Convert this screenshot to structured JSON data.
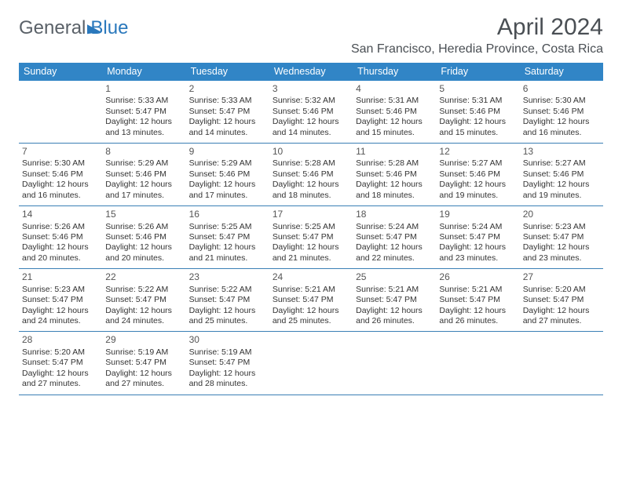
{
  "brand": {
    "part1": "General",
    "part2": "Blue"
  },
  "title": "April 2024",
  "location": "San Francisco, Heredia Province, Costa Rica",
  "colors": {
    "header_bg": "#3185c6",
    "header_text": "#ffffff",
    "rule": "#3a7fb5",
    "text": "#333333",
    "title_text": "#4a4f54",
    "brand_gray": "#5a6168",
    "brand_blue": "#2a78bc",
    "page_bg": "#ffffff"
  },
  "typography": {
    "title_fontsize": 30,
    "location_fontsize": 16,
    "dow_fontsize": 12.5,
    "daynum_fontsize": 12,
    "body_fontsize": 10.5
  },
  "dow": [
    "Sunday",
    "Monday",
    "Tuesday",
    "Wednesday",
    "Thursday",
    "Friday",
    "Saturday"
  ],
  "weeks": [
    [
      null,
      {
        "n": "1",
        "sr": "5:33 AM",
        "ss": "5:47 PM",
        "dl": "12 hours and 13 minutes."
      },
      {
        "n": "2",
        "sr": "5:33 AM",
        "ss": "5:47 PM",
        "dl": "12 hours and 14 minutes."
      },
      {
        "n": "3",
        "sr": "5:32 AM",
        "ss": "5:46 PM",
        "dl": "12 hours and 14 minutes."
      },
      {
        "n": "4",
        "sr": "5:31 AM",
        "ss": "5:46 PM",
        "dl": "12 hours and 15 minutes."
      },
      {
        "n": "5",
        "sr": "5:31 AM",
        "ss": "5:46 PM",
        "dl": "12 hours and 15 minutes."
      },
      {
        "n": "6",
        "sr": "5:30 AM",
        "ss": "5:46 PM",
        "dl": "12 hours and 16 minutes."
      }
    ],
    [
      {
        "n": "7",
        "sr": "5:30 AM",
        "ss": "5:46 PM",
        "dl": "12 hours and 16 minutes."
      },
      {
        "n": "8",
        "sr": "5:29 AM",
        "ss": "5:46 PM",
        "dl": "12 hours and 17 minutes."
      },
      {
        "n": "9",
        "sr": "5:29 AM",
        "ss": "5:46 PM",
        "dl": "12 hours and 17 minutes."
      },
      {
        "n": "10",
        "sr": "5:28 AM",
        "ss": "5:46 PM",
        "dl": "12 hours and 18 minutes."
      },
      {
        "n": "11",
        "sr": "5:28 AM",
        "ss": "5:46 PM",
        "dl": "12 hours and 18 minutes."
      },
      {
        "n": "12",
        "sr": "5:27 AM",
        "ss": "5:46 PM",
        "dl": "12 hours and 19 minutes."
      },
      {
        "n": "13",
        "sr": "5:27 AM",
        "ss": "5:46 PM",
        "dl": "12 hours and 19 minutes."
      }
    ],
    [
      {
        "n": "14",
        "sr": "5:26 AM",
        "ss": "5:46 PM",
        "dl": "12 hours and 20 minutes."
      },
      {
        "n": "15",
        "sr": "5:26 AM",
        "ss": "5:46 PM",
        "dl": "12 hours and 20 minutes."
      },
      {
        "n": "16",
        "sr": "5:25 AM",
        "ss": "5:47 PM",
        "dl": "12 hours and 21 minutes."
      },
      {
        "n": "17",
        "sr": "5:25 AM",
        "ss": "5:47 PM",
        "dl": "12 hours and 21 minutes."
      },
      {
        "n": "18",
        "sr": "5:24 AM",
        "ss": "5:47 PM",
        "dl": "12 hours and 22 minutes."
      },
      {
        "n": "19",
        "sr": "5:24 AM",
        "ss": "5:47 PM",
        "dl": "12 hours and 23 minutes."
      },
      {
        "n": "20",
        "sr": "5:23 AM",
        "ss": "5:47 PM",
        "dl": "12 hours and 23 minutes."
      }
    ],
    [
      {
        "n": "21",
        "sr": "5:23 AM",
        "ss": "5:47 PM",
        "dl": "12 hours and 24 minutes."
      },
      {
        "n": "22",
        "sr": "5:22 AM",
        "ss": "5:47 PM",
        "dl": "12 hours and 24 minutes."
      },
      {
        "n": "23",
        "sr": "5:22 AM",
        "ss": "5:47 PM",
        "dl": "12 hours and 25 minutes."
      },
      {
        "n": "24",
        "sr": "5:21 AM",
        "ss": "5:47 PM",
        "dl": "12 hours and 25 minutes."
      },
      {
        "n": "25",
        "sr": "5:21 AM",
        "ss": "5:47 PM",
        "dl": "12 hours and 26 minutes."
      },
      {
        "n": "26",
        "sr": "5:21 AM",
        "ss": "5:47 PM",
        "dl": "12 hours and 26 minutes."
      },
      {
        "n": "27",
        "sr": "5:20 AM",
        "ss": "5:47 PM",
        "dl": "12 hours and 27 minutes."
      }
    ],
    [
      {
        "n": "28",
        "sr": "5:20 AM",
        "ss": "5:47 PM",
        "dl": "12 hours and 27 minutes."
      },
      {
        "n": "29",
        "sr": "5:19 AM",
        "ss": "5:47 PM",
        "dl": "12 hours and 27 minutes."
      },
      {
        "n": "30",
        "sr": "5:19 AM",
        "ss": "5:47 PM",
        "dl": "12 hours and 28 minutes."
      },
      null,
      null,
      null,
      null
    ]
  ],
  "labels": {
    "sunrise": "Sunrise: ",
    "sunset": "Sunset: ",
    "daylight": "Daylight: "
  }
}
